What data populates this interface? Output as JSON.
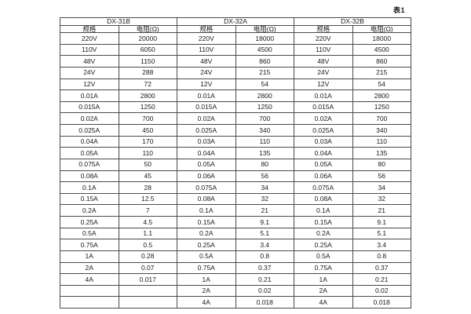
{
  "caption": "表1",
  "colors": {
    "background": "#ffffff",
    "border": "#4a4a4a",
    "text": "#1a1a1a"
  },
  "table": {
    "col_headers": [
      "规格",
      "电阻(Ω)"
    ],
    "groups": [
      {
        "title": "DX-31B",
        "rows": [
          [
            "220V",
            "20000"
          ],
          [
            "110V",
            "6050"
          ],
          [
            "48V",
            "1150"
          ],
          [
            "24V",
            "288"
          ],
          [
            "12V",
            "72"
          ],
          [
            "0.01A",
            "2800"
          ],
          [
            "0.015A",
            "1250"
          ],
          [
            "0.02A",
            "700"
          ],
          [
            "0.025A",
            "450"
          ],
          [
            "0.04A",
            "170"
          ],
          [
            "0.05A",
            "110"
          ],
          [
            "0.075A",
            "50"
          ],
          [
            "0.08A",
            "45"
          ],
          [
            "0.1A",
            "28"
          ],
          [
            "0.15A",
            "12.5"
          ],
          [
            "0.2A",
            "7"
          ],
          [
            "0.25A",
            "4.5"
          ],
          [
            "0.5A",
            "1.1"
          ],
          [
            "0.75A",
            "0.5"
          ],
          [
            "1A",
            "0.28"
          ],
          [
            "2A",
            "0.07"
          ],
          [
            "4A",
            "0.017"
          ],
          [
            "",
            ""
          ],
          [
            "",
            ""
          ]
        ]
      },
      {
        "title": "DX-32A",
        "rows": [
          [
            "220V",
            "18000"
          ],
          [
            "110V",
            "4500"
          ],
          [
            "48V",
            "860"
          ],
          [
            "24V",
            "215"
          ],
          [
            "12V",
            "54"
          ],
          [
            "0.01A",
            "2800"
          ],
          [
            "0.015A",
            "1250"
          ],
          [
            "0.02A",
            "700"
          ],
          [
            "0.025A",
            "340"
          ],
          [
            "0.03A",
            "110"
          ],
          [
            "0.04A",
            "135"
          ],
          [
            "0.05A",
            "80"
          ],
          [
            "0.06A",
            "56"
          ],
          [
            "0.075A",
            "34"
          ],
          [
            "0.08A",
            "32"
          ],
          [
            "0.1A",
            "21"
          ],
          [
            "0.15A",
            "9.1"
          ],
          [
            "0.2A",
            "5.1"
          ],
          [
            "0.25A",
            "3.4"
          ],
          [
            "0.5A",
            "0.8"
          ],
          [
            "0.75A",
            "0.37"
          ],
          [
            "1A",
            "0.21"
          ],
          [
            "2A",
            "0.02"
          ],
          [
            "4A",
            "0.018"
          ]
        ]
      },
      {
        "title": "DX-32B",
        "rows": [
          [
            "220V",
            "18000"
          ],
          [
            "110V",
            "4500"
          ],
          [
            "48V",
            "860"
          ],
          [
            "24V",
            "215"
          ],
          [
            "12V",
            "54"
          ],
          [
            "0.01A",
            "2800"
          ],
          [
            "0.015A",
            "1250"
          ],
          [
            "0.02A",
            "700"
          ],
          [
            "0.025A",
            "340"
          ],
          [
            "0.03A",
            "110"
          ],
          [
            "0.04A",
            "135"
          ],
          [
            "0.05A",
            "80"
          ],
          [
            "0.06A",
            "56"
          ],
          [
            "0.075A",
            "34"
          ],
          [
            "0.08A",
            "32"
          ],
          [
            "0.1A",
            "21"
          ],
          [
            "0.15A",
            "9.1"
          ],
          [
            "0.2A",
            "5.1"
          ],
          [
            "0.25A",
            "3.4"
          ],
          [
            "0.5A",
            "0.8"
          ],
          [
            "0.75A",
            "0.37"
          ],
          [
            "1A",
            "0.21"
          ],
          [
            "2A",
            "0.02"
          ],
          [
            "4A",
            "0.018"
          ]
        ]
      }
    ]
  }
}
